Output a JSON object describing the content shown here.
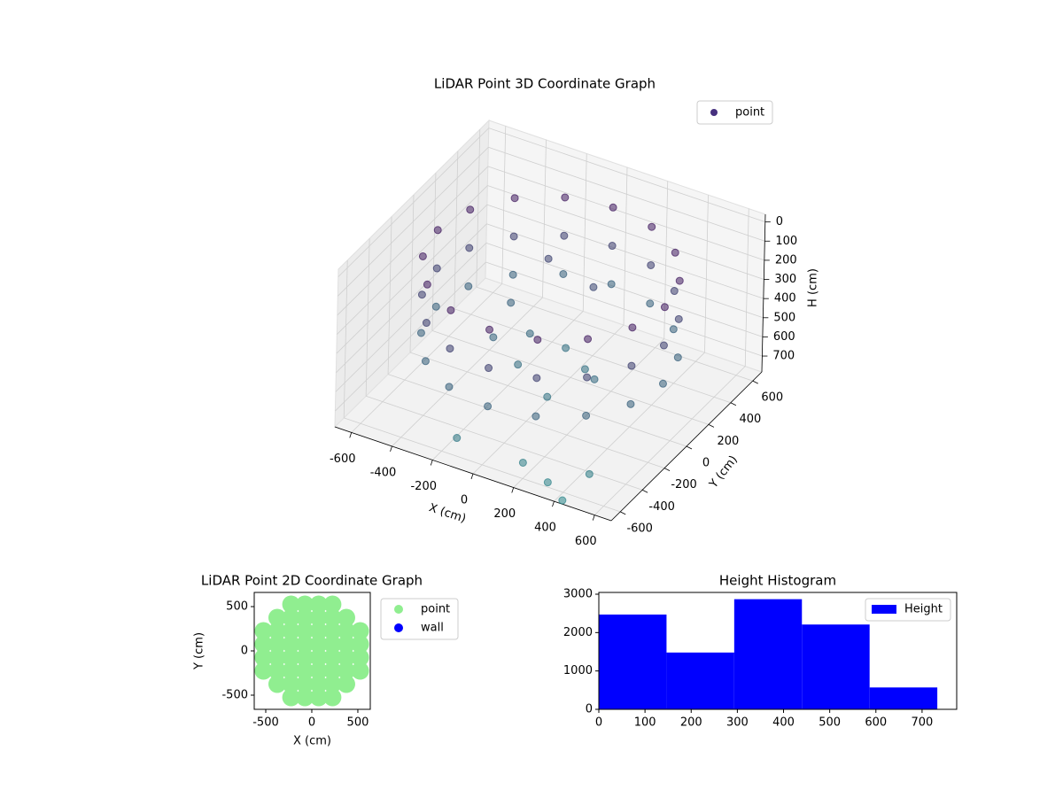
{
  "chart_data": [
    {
      "type": "scatter3d",
      "title": "LiDAR Point 3D Coordinate Graph",
      "xlabel": "X (cm)",
      "ylabel": "Y (cm)",
      "zlabel": "H (cm)",
      "xlim": [
        -682,
        682
      ],
      "ylim": [
        -682,
        682
      ],
      "zlim": [
        -40,
        783
      ],
      "z_inverted": true,
      "xticks": [
        -600,
        -400,
        -200,
        0,
        200,
        400,
        600
      ],
      "yticks": [
        -600,
        -400,
        -200,
        0,
        200,
        400,
        600
      ],
      "zticks": [
        0,
        100,
        200,
        300,
        400,
        500,
        600,
        700
      ],
      "grid": true,
      "legend": "upper right",
      "series": [
        {
          "name": "point",
          "color": "#46307e",
          "x": [
            560,
            560,
            560,
            517,
            517,
            517,
            396,
            396,
            396,
            214,
            214,
            214,
            0,
            0,
            0,
            -214,
            -214,
            -214,
            -396,
            -396,
            -396,
            -517,
            -517,
            -517,
            -560,
            -560,
            -560,
            -517,
            -517,
            -517,
            -396,
            -396,
            -396,
            -214,
            -214,
            -214,
            0,
            0,
            0,
            214,
            214,
            214,
            396,
            396,
            396,
            517,
            517,
            517,
            -300,
            -150,
            0,
            150,
            -100,
            100,
            250,
            -250,
            50,
            -200,
            200,
            350,
            450,
            500,
            -100
          ],
          "y": [
            0,
            0,
            0,
            214,
            214,
            214,
            396,
            396,
            396,
            517,
            517,
            517,
            560,
            560,
            560,
            517,
            517,
            517,
            396,
            396,
            396,
            214,
            214,
            214,
            0,
            0,
            0,
            -214,
            -214,
            -214,
            -396,
            -396,
            -396,
            -517,
            -517,
            -517,
            -560,
            -560,
            -560,
            -517,
            -517,
            -517,
            -396,
            -396,
            -396,
            -214,
            -214,
            -214,
            200,
            100,
            150,
            50,
            -100,
            -200,
            -50,
            -50,
            300,
            350,
            -600,
            -650,
            -700,
            -550,
            -650
          ],
          "z": [
            100,
            300,
            500,
            100,
            300,
            500,
            100,
            300,
            500,
            100,
            300,
            500,
            100,
            300,
            500,
            100,
            300,
            500,
            100,
            300,
            500,
            100,
            300,
            500,
            100,
            300,
            500,
            100,
            300,
            500,
            100,
            300,
            500,
            100,
            300,
            500,
            100,
            300,
            500,
            100,
            300,
            500,
            100,
            300,
            500,
            100,
            300,
            500,
            500,
            550,
            600,
            600,
            580,
            620,
            560,
            520,
            350,
            320,
            700,
            720,
            750,
            680,
            650
          ]
        }
      ]
    },
    {
      "type": "scatter",
      "title": "LiDAR Point 2D Coordinate Graph",
      "xlabel": "X (cm)",
      "ylabel": "Y (cm)",
      "xlim": [
        -625,
        635
      ],
      "ylim": [
        -660,
        660
      ],
      "xticks": [
        -500,
        0,
        500
      ],
      "yticks": [
        -500,
        0,
        500
      ],
      "legend": "outside right",
      "series": [
        {
          "name": "point",
          "color": "#90ee90",
          "x": [
            -225,
            -75,
            75,
            225,
            -375,
            -225,
            -75,
            75,
            225,
            375,
            -525,
            -375,
            -225,
            -75,
            75,
            225,
            375,
            525,
            -525,
            -375,
            -225,
            -75,
            75,
            225,
            375,
            525,
            -525,
            -375,
            -225,
            -75,
            75,
            225,
            375,
            525,
            -525,
            -375,
            -225,
            -75,
            75,
            225,
            375,
            525,
            -375,
            -225,
            -75,
            75,
            225,
            375,
            -225,
            -75,
            75,
            225
          ],
          "y": [
            -525,
            -525,
            -525,
            -525,
            -375,
            -375,
            -375,
            -375,
            -375,
            -375,
            -225,
            -225,
            -225,
            -225,
            -225,
            -225,
            -225,
            -225,
            -75,
            -75,
            -75,
            -75,
            -75,
            -75,
            -75,
            -75,
            75,
            75,
            75,
            75,
            75,
            75,
            75,
            75,
            225,
            225,
            225,
            225,
            225,
            225,
            225,
            225,
            375,
            375,
            375,
            375,
            375,
            375,
            525,
            525,
            525,
            525
          ]
        },
        {
          "name": "wall",
          "color": "#0000ff",
          "x": [],
          "y": []
        }
      ]
    },
    {
      "type": "histogram",
      "title": "Height Histogram",
      "bins": [
        0,
        146.6,
        293.2,
        439.8,
        586.4,
        733
      ],
      "values": [
        2470,
        1480,
        2870,
        2210,
        570
      ],
      "series_name": "Height",
      "color": "#0000ff",
      "xlim": [
        0,
        775
      ],
      "ylim": [
        0,
        3046
      ],
      "xticks": [
        0,
        100,
        200,
        300,
        400,
        500,
        600,
        700
      ],
      "yticks": [
        0,
        1000,
        2000,
        3000
      ],
      "legend": "upper right"
    }
  ]
}
